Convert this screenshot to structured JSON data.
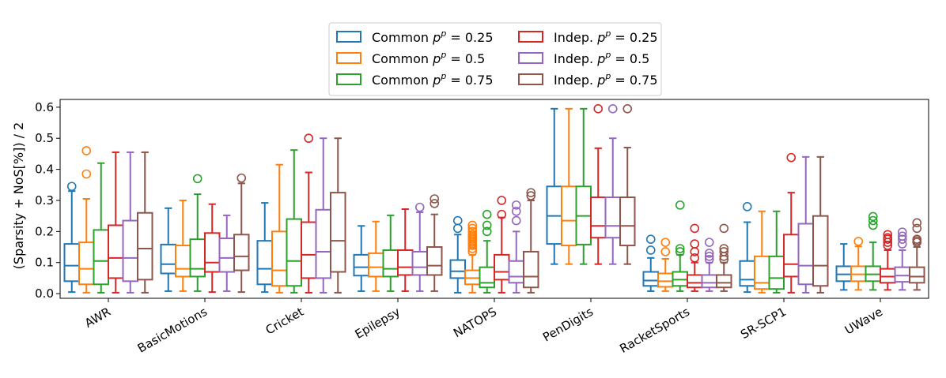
{
  "chart_data": {
    "type": "box",
    "ylabel": "(Sparsity + NoS[%]) / 2",
    "xlabel": "",
    "ylim": [
      -0.015,
      0.625
    ],
    "yticks": [
      "0.0",
      "0.1",
      "0.2",
      "0.3",
      "0.4",
      "0.5",
      "0.6"
    ],
    "categories": [
      "AWR",
      "BasicMotions",
      "Cricket",
      "Epilepsy",
      "NATOPS",
      "PenDigits",
      "RacketSports",
      "SR-SCP1",
      "UWave"
    ],
    "series": [
      {
        "name": "Common",
        "p": "0.25",
        "color": "#1f77b4"
      },
      {
        "name": "Common",
        "p": "0.5",
        "color": "#ff7f0e"
      },
      {
        "name": "Common",
        "p": "0.75",
        "color": "#2ca02c"
      },
      {
        "name": "Indep.",
        "p": "0.25",
        "color": "#d62728"
      },
      {
        "name": "Indep.",
        "p": "0.5",
        "color": "#9467bd"
      },
      {
        "name": "Indep.",
        "p": "0.75",
        "color": "#8c564b"
      }
    ],
    "boxes": [
      [
        {
          "whislo": 0.005,
          "q1": 0.04,
          "med": 0.09,
          "q3": 0.16,
          "whishi": 0.33,
          "fliers": [
            0.345
          ]
        },
        {
          "whislo": 0.003,
          "q1": 0.03,
          "med": 0.08,
          "q3": 0.165,
          "whishi": 0.305,
          "fliers": [
            0.385,
            0.46
          ]
        },
        {
          "whislo": 0.003,
          "q1": 0.03,
          "med": 0.105,
          "q3": 0.205,
          "whishi": 0.42,
          "fliers": []
        },
        {
          "whislo": 0.003,
          "q1": 0.05,
          "med": 0.115,
          "q3": 0.22,
          "whishi": 0.455,
          "fliers": []
        },
        {
          "whislo": 0.003,
          "q1": 0.04,
          "med": 0.115,
          "q3": 0.235,
          "whishi": 0.455,
          "fliers": []
        },
        {
          "whislo": 0.003,
          "q1": 0.045,
          "med": 0.145,
          "q3": 0.26,
          "whishi": 0.455,
          "fliers": []
        }
      ],
      [
        {
          "whislo": 0.008,
          "q1": 0.065,
          "med": 0.095,
          "q3": 0.158,
          "whishi": 0.275,
          "fliers": []
        },
        {
          "whislo": 0.008,
          "q1": 0.055,
          "med": 0.08,
          "q3": 0.155,
          "whishi": 0.3,
          "fliers": []
        },
        {
          "whislo": 0.008,
          "q1": 0.055,
          "med": 0.08,
          "q3": 0.175,
          "whishi": 0.32,
          "fliers": [
            0.37
          ]
        },
        {
          "whislo": 0.005,
          "q1": 0.07,
          "med": 0.1,
          "q3": 0.195,
          "whishi": 0.288,
          "fliers": []
        },
        {
          "whislo": 0.008,
          "q1": 0.07,
          "med": 0.115,
          "q3": 0.178,
          "whishi": 0.252,
          "fliers": []
        },
        {
          "whislo": 0.005,
          "q1": 0.075,
          "med": 0.12,
          "q3": 0.19,
          "whishi": 0.355,
          "fliers": [
            0.372
          ]
        }
      ],
      [
        {
          "whislo": 0.005,
          "q1": 0.03,
          "med": 0.08,
          "q3": 0.17,
          "whishi": 0.292,
          "fliers": []
        },
        {
          "whislo": 0.003,
          "q1": 0.025,
          "med": 0.075,
          "q3": 0.2,
          "whishi": 0.415,
          "fliers": []
        },
        {
          "whislo": 0.003,
          "q1": 0.025,
          "med": 0.105,
          "q3": 0.24,
          "whishi": 0.462,
          "fliers": []
        },
        {
          "whislo": 0.003,
          "q1": 0.05,
          "med": 0.125,
          "q3": 0.23,
          "whishi": 0.39,
          "fliers": [
            0.5
          ]
        },
        {
          "whislo": 0.003,
          "q1": 0.05,
          "med": 0.135,
          "q3": 0.27,
          "whishi": 0.5,
          "fliers": []
        },
        {
          "whislo": 0.003,
          "q1": 0.07,
          "med": 0.17,
          "q3": 0.325,
          "whishi": 0.5,
          "fliers": []
        }
      ],
      [
        {
          "whislo": 0.008,
          "q1": 0.058,
          "med": 0.085,
          "q3": 0.125,
          "whishi": 0.218,
          "fliers": []
        },
        {
          "whislo": 0.008,
          "q1": 0.055,
          "med": 0.085,
          "q3": 0.13,
          "whishi": 0.232,
          "fliers": []
        },
        {
          "whislo": 0.008,
          "q1": 0.055,
          "med": 0.08,
          "q3": 0.14,
          "whishi": 0.252,
          "fliers": []
        },
        {
          "whislo": 0.008,
          "q1": 0.06,
          "med": 0.085,
          "q3": 0.14,
          "whishi": 0.272,
          "fliers": []
        },
        {
          "whislo": 0.008,
          "q1": 0.06,
          "med": 0.085,
          "q3": 0.135,
          "whishi": 0.262,
          "fliers": [
            0.278
          ]
        },
        {
          "whislo": 0.008,
          "q1": 0.06,
          "med": 0.09,
          "q3": 0.15,
          "whishi": 0.255,
          "fliers": [
            0.29,
            0.305
          ]
        }
      ],
      [
        {
          "whislo": 0.003,
          "q1": 0.05,
          "med": 0.072,
          "q3": 0.108,
          "whishi": 0.19,
          "fliers": [
            0.21,
            0.235
          ]
        },
        {
          "whislo": 0.003,
          "q1": 0.03,
          "med": 0.05,
          "q3": 0.075,
          "whishi": 0.125,
          "fliers": [
            0.135,
            0.145,
            0.155,
            0.16,
            0.165,
            0.17,
            0.175,
            0.18,
            0.185,
            0.19,
            0.2,
            0.21,
            0.22
          ]
        },
        {
          "whislo": 0.003,
          "q1": 0.02,
          "med": 0.035,
          "q3": 0.085,
          "whishi": 0.17,
          "fliers": [
            0.2,
            0.22,
            0.255
          ]
        },
        {
          "whislo": 0.003,
          "q1": 0.045,
          "med": 0.07,
          "q3": 0.125,
          "whishi": 0.245,
          "fliers": [
            0.255,
            0.3
          ]
        },
        {
          "whislo": 0.003,
          "q1": 0.035,
          "med": 0.055,
          "q3": 0.105,
          "whishi": 0.2,
          "fliers": [
            0.235,
            0.265,
            0.285
          ]
        },
        {
          "whislo": 0.003,
          "q1": 0.02,
          "med": 0.055,
          "q3": 0.135,
          "whishi": 0.3,
          "fliers": [
            0.315,
            0.325
          ]
        }
      ],
      [
        {
          "whislo": 0.095,
          "q1": 0.16,
          "med": 0.25,
          "q3": 0.345,
          "whishi": 0.595,
          "fliers": []
        },
        {
          "whislo": 0.095,
          "q1": 0.155,
          "med": 0.235,
          "q3": 0.345,
          "whishi": 0.595,
          "fliers": []
        },
        {
          "whislo": 0.095,
          "q1": 0.158,
          "med": 0.25,
          "q3": 0.345,
          "whishi": 0.595,
          "fliers": []
        },
        {
          "whislo": 0.095,
          "q1": 0.18,
          "med": 0.218,
          "q3": 0.31,
          "whishi": 0.468,
          "fliers": [
            0.595
          ]
        },
        {
          "whislo": 0.095,
          "q1": 0.18,
          "med": 0.218,
          "q3": 0.31,
          "whishi": 0.5,
          "fliers": [
            0.595
          ]
        },
        {
          "whislo": 0.095,
          "q1": 0.155,
          "med": 0.218,
          "q3": 0.31,
          "whishi": 0.47,
          "fliers": [
            0.595
          ]
        }
      ],
      [
        {
          "whislo": 0.008,
          "q1": 0.025,
          "med": 0.042,
          "q3": 0.07,
          "whishi": 0.115,
          "fliers": [
            0.14,
            0.175
          ]
        },
        {
          "whislo": 0.008,
          "q1": 0.022,
          "med": 0.04,
          "q3": 0.065,
          "whishi": 0.112,
          "fliers": [
            0.135,
            0.165
          ]
        },
        {
          "whislo": 0.008,
          "q1": 0.025,
          "med": 0.045,
          "q3": 0.07,
          "whishi": 0.125,
          "fliers": [
            0.135,
            0.145,
            0.285
          ]
        },
        {
          "whislo": 0.008,
          "q1": 0.02,
          "med": 0.035,
          "q3": 0.06,
          "whishi": 0.1,
          "fliers": [
            0.115,
            0.135,
            0.16,
            0.21
          ]
        },
        {
          "whislo": 0.008,
          "q1": 0.02,
          "med": 0.035,
          "q3": 0.06,
          "whishi": 0.1,
          "fliers": [
            0.11,
            0.12,
            0.13,
            0.165
          ]
        },
        {
          "whislo": 0.008,
          "q1": 0.02,
          "med": 0.035,
          "q3": 0.06,
          "whishi": 0.1,
          "fliers": [
            0.11,
            0.12,
            0.135,
            0.145,
            0.21
          ]
        }
      ],
      [
        {
          "whislo": 0.005,
          "q1": 0.025,
          "med": 0.045,
          "q3": 0.105,
          "whishi": 0.23,
          "fliers": [
            0.28
          ]
        },
        {
          "whislo": 0.003,
          "q1": 0.015,
          "med": 0.035,
          "q3": 0.12,
          "whishi": 0.265,
          "fliers": []
        },
        {
          "whislo": 0.003,
          "q1": 0.015,
          "med": 0.05,
          "q3": 0.12,
          "whishi": 0.265,
          "fliers": []
        },
        {
          "whislo": 0.003,
          "q1": 0.055,
          "med": 0.095,
          "q3": 0.19,
          "whishi": 0.325,
          "fliers": [
            0.438
          ]
        },
        {
          "whislo": 0.003,
          "q1": 0.03,
          "med": 0.09,
          "q3": 0.225,
          "whishi": 0.44,
          "fliers": []
        },
        {
          "whislo": 0.003,
          "q1": 0.025,
          "med": 0.09,
          "q3": 0.25,
          "whishi": 0.44,
          "fliers": []
        }
      ],
      [
        {
          "whislo": 0.012,
          "q1": 0.04,
          "med": 0.062,
          "q3": 0.088,
          "whishi": 0.16,
          "fliers": []
        },
        {
          "whislo": 0.012,
          "q1": 0.04,
          "med": 0.062,
          "q3": 0.088,
          "whishi": 0.152,
          "fliers": [
            0.168
          ]
        },
        {
          "whislo": 0.012,
          "q1": 0.04,
          "med": 0.062,
          "q3": 0.088,
          "whishi": 0.165,
          "fliers": [
            0.22,
            0.235,
            0.248
          ]
        },
        {
          "whislo": 0.012,
          "q1": 0.035,
          "med": 0.055,
          "q3": 0.08,
          "whishi": 0.14,
          "fliers": [
            0.155,
            0.165,
            0.175,
            0.18,
            0.19
          ]
        },
        {
          "whislo": 0.012,
          "q1": 0.038,
          "med": 0.058,
          "q3": 0.085,
          "whishi": 0.14,
          "fliers": [
            0.16,
            0.175,
            0.185,
            0.198
          ]
        },
        {
          "whislo": 0.012,
          "q1": 0.035,
          "med": 0.055,
          "q3": 0.085,
          "whishi": 0.15,
          "fliers": [
            0.165,
            0.17,
            0.175,
            0.21,
            0.228
          ]
        }
      ]
    ]
  }
}
